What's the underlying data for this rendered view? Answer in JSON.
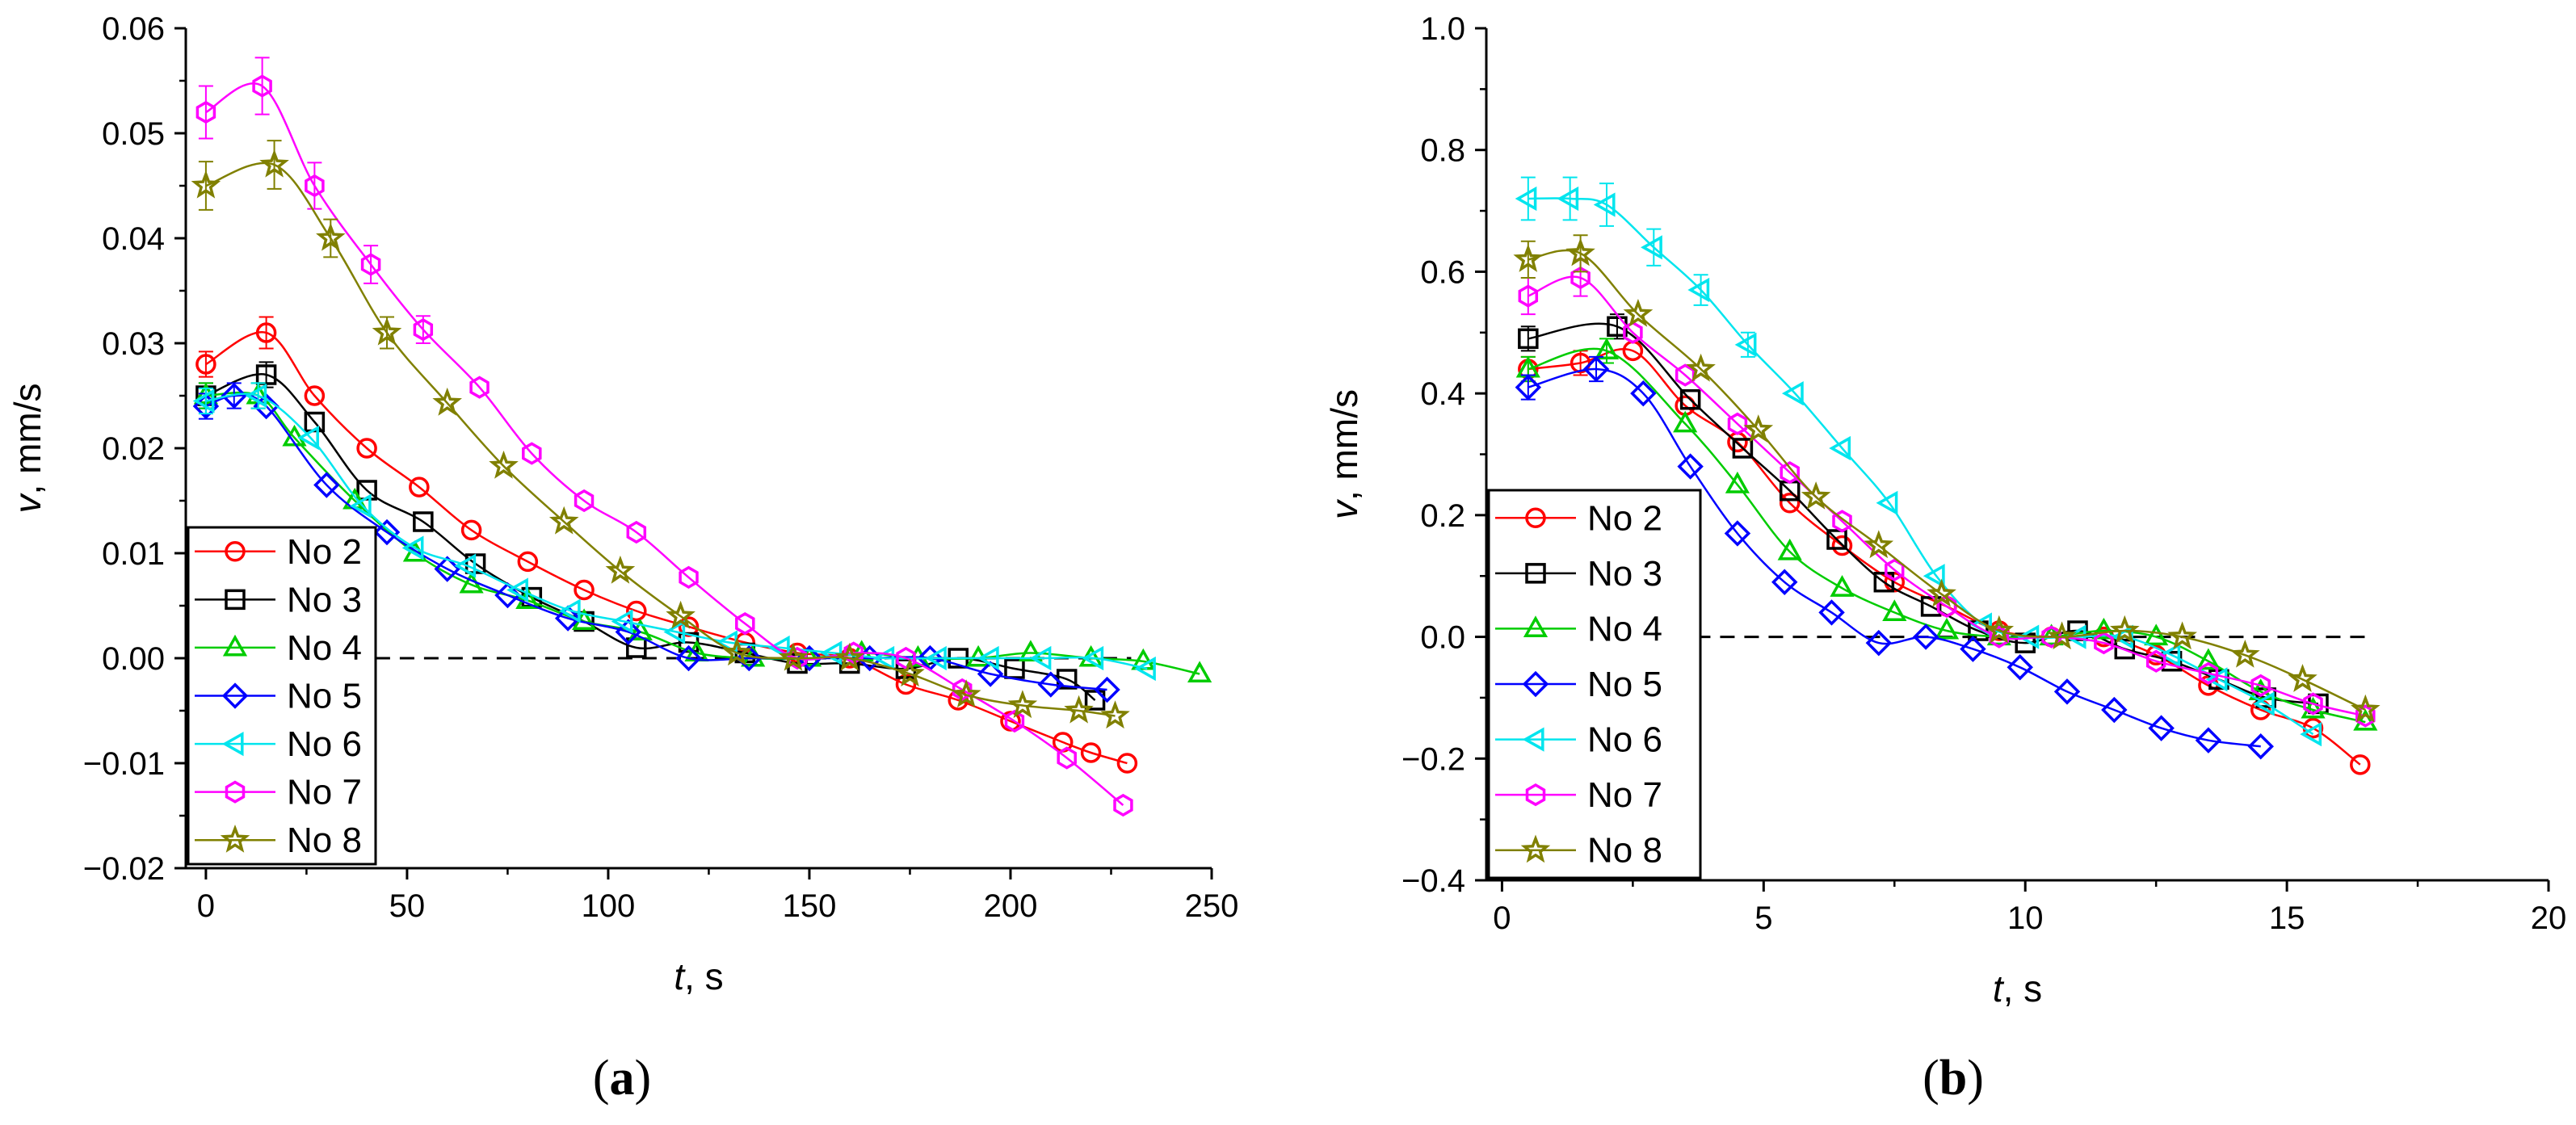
{
  "figure": {
    "panels": [
      {
        "paren_open": "(",
        "letter": "a",
        "paren_close": ")"
      },
      {
        "paren_open": "(",
        "letter": "b",
        "paren_close": ")"
      }
    ]
  },
  "series_style": {
    "No 2": {
      "color": "#ff0000",
      "marker": "circle"
    },
    "No 3": {
      "color": "#000000",
      "marker": "square"
    },
    "No 4": {
      "color": "#00cc00",
      "marker": "triangle-up"
    },
    "No 5": {
      "color": "#0000ff",
      "marker": "diamond"
    },
    "No 6": {
      "color": "#00e5ee",
      "marker": "triangle-left"
    },
    "No 7": {
      "color": "#ff00ff",
      "marker": "hexagon"
    },
    "No 8": {
      "color": "#808000",
      "marker": "star"
    }
  },
  "chart_data": [
    {
      "type": "line",
      "panel": "a",
      "xlabel_var": "t",
      "xlabel_unit": ", s",
      "ylabel_var": "v",
      "ylabel_unit": ", mm/s",
      "xlim": [
        -5,
        250
      ],
      "ylim": [
        -0.02,
        0.06
      ],
      "xticks": [
        0,
        50,
        100,
        150,
        200,
        250
      ],
      "xtick_labels": [
        "0",
        "50",
        "100",
        "150",
        "200",
        "250"
      ],
      "yticks": [
        -0.02,
        -0.01,
        0.0,
        0.01,
        0.02,
        0.03,
        0.04,
        0.05,
        0.06
      ],
      "ytick_labels": [
        "−0.02",
        "−0.01",
        "0.00",
        "0.01",
        "0.02",
        "0.03",
        "0.04",
        "0.05",
        "0.06"
      ],
      "reference_line": {
        "y": 0,
        "x_from": 0,
        "x_to": 230,
        "style": "dashed"
      },
      "legend": {
        "position": "left",
        "entries": [
          "No 2",
          "No 3",
          "No 4",
          "No 5",
          "No 6",
          "No 7",
          "No 8"
        ]
      },
      "series": [
        {
          "name": "No 2",
          "x": [
            0,
            15,
            27,
            40,
            53,
            66,
            80,
            94,
            107,
            120,
            134,
            147,
            160,
            174,
            187,
            200,
            213,
            220,
            229
          ],
          "y": [
            0.028,
            0.031,
            0.025,
            0.02,
            0.0163,
            0.0122,
            0.0092,
            0.0065,
            0.0045,
            0.003,
            0.0015,
            0.0005,
            0.0,
            -0.0025,
            -0.004,
            -0.006,
            -0.008,
            -0.009,
            -0.01
          ],
          "err": [
            0.0012,
            0.0015,
            0.0,
            0.0,
            0.0,
            0.0,
            0.0,
            0.0,
            0.0,
            0.0,
            0.0,
            0.0,
            0.0,
            0.0,
            0.0,
            0.0,
            0.0,
            0.0,
            0.0
          ]
        },
        {
          "name": "No 3",
          "x": [
            0,
            15,
            27,
            40,
            54,
            67,
            81,
            94,
            107,
            120,
            134,
            147,
            160,
            174,
            187,
            201,
            214,
            221
          ],
          "y": [
            0.025,
            0.027,
            0.0225,
            0.016,
            0.013,
            0.009,
            0.0058,
            0.0035,
            0.001,
            0.0015,
            0.0005,
            -0.0005,
            -0.0005,
            -0.001,
            0.0,
            -0.001,
            -0.002,
            -0.004
          ],
          "err": [
            0.0012,
            0.0012,
            0.0,
            0.0,
            0.0,
            0.0,
            0.0,
            0.0,
            0.0,
            0.0,
            0.0,
            0.0,
            0.0,
            0.0,
            0.0,
            0.0,
            0.0,
            0.0
          ]
        },
        {
          "name": "No 4",
          "x": [
            0,
            13,
            22,
            37,
            52,
            66,
            80,
            94,
            108,
            122,
            136,
            150,
            163,
            177,
            192,
            205,
            220,
            233,
            247
          ],
          "y": [
            0.025,
            0.025,
            0.021,
            0.015,
            0.01,
            0.007,
            0.0055,
            0.0035,
            0.0025,
            0.0005,
            0.0,
            0.0,
            0.0005,
            0.0,
            0.0,
            0.0005,
            0.0,
            -0.0003,
            -0.0015
          ],
          "err": [
            0.0012,
            0.0012,
            0.0,
            0.0,
            0.0,
            0.0,
            0.0,
            0.0,
            0.0,
            0.0,
            0.0,
            0.0,
            0.0,
            0.0,
            0.0,
            0.0,
            0.0,
            0.0,
            0.0
          ]
        },
        {
          "name": "No 5",
          "x": [
            0,
            7,
            15,
            30,
            45,
            60,
            75,
            90,
            105,
            120,
            135,
            150,
            165,
            180,
            195,
            210,
            224
          ],
          "y": [
            0.024,
            0.025,
            0.024,
            0.0165,
            0.012,
            0.0085,
            0.006,
            0.0038,
            0.0025,
            0.0,
            0.0,
            0.0,
            0.0,
            0.0,
            -0.0015,
            -0.0025,
            -0.003
          ],
          "err": [
            0.0012,
            0.0012,
            0.0,
            0.0,
            0.0,
            0.0,
            0.0,
            0.0,
            0.0,
            0.0,
            0.0,
            0.0,
            0.0,
            0.0,
            0.0,
            0.0,
            0.0
          ]
        },
        {
          "name": "No 6",
          "x": [
            0,
            13,
            26,
            39,
            52,
            65,
            78,
            91,
            104,
            117,
            130,
            143,
            156,
            169,
            182,
            195,
            208,
            221,
            234
          ],
          "y": [
            0.0245,
            0.025,
            0.021,
            0.0145,
            0.0105,
            0.0088,
            0.0065,
            0.0045,
            0.0035,
            0.0025,
            0.0015,
            0.001,
            0.0005,
            0.0,
            0.0,
            0.0,
            0.0,
            0.0,
            -0.001
          ],
          "err": [
            0.0012,
            0.0012,
            0.0,
            0.0,
            0.0,
            0.0,
            0.0,
            0.0,
            0.0,
            0.0,
            0.0,
            0.0,
            0.0,
            0.0,
            0.0,
            0.0,
            0.0,
            0.0,
            0.0
          ]
        },
        {
          "name": "No 7",
          "x": [
            0,
            14,
            27,
            41,
            54,
            68,
            81,
            94,
            107,
            120,
            134,
            147,
            161,
            174,
            188,
            201,
            214,
            228
          ],
          "y": [
            0.052,
            0.0545,
            0.045,
            0.0375,
            0.0313,
            0.0258,
            0.0195,
            0.015,
            0.012,
            0.0077,
            0.0033,
            0.0,
            0.0005,
            0.0,
            -0.003,
            -0.006,
            -0.0095,
            -0.014
          ],
          "err": [
            0.0025,
            0.0027,
            0.0022,
            0.0018,
            0.0013,
            0.0,
            0.0,
            0.0,
            0.0,
            0.0,
            0.0,
            0.0,
            0.0,
            0.0,
            0.0,
            0.0,
            0.0,
            0.0
          ]
        },
        {
          "name": "No 8",
          "x": [
            0,
            17,
            31,
            45,
            60,
            74,
            89,
            103,
            118,
            132,
            146,
            160,
            175,
            189,
            203,
            217,
            226
          ],
          "y": [
            0.045,
            0.047,
            0.04,
            0.031,
            0.0243,
            0.0183,
            0.013,
            0.0083,
            0.004,
            0.0005,
            0.0,
            0.0,
            -0.0015,
            -0.0035,
            -0.0045,
            -0.005,
            -0.0055
          ],
          "err": [
            0.0023,
            0.0023,
            0.0018,
            0.0015,
            0.0,
            0.0,
            0.0,
            0.0,
            0.0,
            0.0,
            0.0,
            0.0,
            0.0,
            0.0,
            0.0,
            0.0,
            0.0
          ]
        }
      ]
    },
    {
      "type": "line",
      "panel": "b",
      "xlabel_var": "t",
      "xlabel_unit": ", s",
      "ylabel_var": "v",
      "ylabel_unit": ", mm/s",
      "xlim": [
        -0.3,
        20
      ],
      "ylim": [
        -0.4,
        1.0
      ],
      "xticks": [
        0,
        5,
        10,
        15,
        20
      ],
      "xtick_labels": [
        "0",
        "5",
        "10",
        "15",
        "20"
      ],
      "yticks": [
        -0.4,
        -0.2,
        0.0,
        0.2,
        0.4,
        0.6,
        0.8,
        1.0
      ],
      "ytick_labels": [
        "−0.4",
        "−0.2",
        "0.0",
        "0.2",
        "0.4",
        "0.6",
        "0.8",
        "1.0"
      ],
      "reference_line": {
        "y": 0,
        "x_from": 0,
        "x_to": 16.5,
        "style": "dashed"
      },
      "legend": {
        "position": "left",
        "entries": [
          "No 2",
          "No 3",
          "No 4",
          "No 5",
          "No 6",
          "No 7",
          "No 8"
        ]
      },
      "series": [
        {
          "name": "No 2",
          "x": [
            0.5,
            1.5,
            2.5,
            3.5,
            4.5,
            5.5,
            6.5,
            7.5,
            8.5,
            9.5,
            10.5,
            11.5,
            12.5,
            13.5,
            14.5,
            15.5,
            16.4
          ],
          "y": [
            0.44,
            0.45,
            0.47,
            0.38,
            0.32,
            0.22,
            0.15,
            0.09,
            0.05,
            0.01,
            0.0,
            0.0,
            -0.03,
            -0.08,
            -0.12,
            -0.15,
            -0.21
          ],
          "err": [
            0.02,
            0.02,
            0.0,
            0.0,
            0.0,
            0.0,
            0.0,
            0.0,
            0.0,
            0.0,
            0.0,
            0.0,
            0.0,
            0.0,
            0.0,
            0.0,
            0.0
          ]
        },
        {
          "name": "No 3",
          "x": [
            0.5,
            2.2,
            3.6,
            4.6,
            5.5,
            6.4,
            7.3,
            8.2,
            9.1,
            10.0,
            11.0,
            11.9,
            12.8,
            13.7,
            14.6,
            15.6
          ],
          "y": [
            0.49,
            0.51,
            0.39,
            0.31,
            0.24,
            0.16,
            0.09,
            0.05,
            0.01,
            -0.01,
            0.01,
            -0.02,
            -0.04,
            -0.07,
            -0.1,
            -0.11
          ],
          "err": [
            0.02,
            0.02,
            0.0,
            0.0,
            0.0,
            0.0,
            0.0,
            0.0,
            0.0,
            0.0,
            0.0,
            0.0,
            0.0,
            0.0,
            0.0,
            0.0
          ]
        },
        {
          "name": "No 4",
          "x": [
            0.5,
            2.0,
            3.5,
            4.5,
            5.5,
            6.5,
            7.5,
            8.5,
            9.5,
            10.5,
            11.5,
            12.5,
            13.5,
            14.5,
            15.5,
            16.5
          ],
          "y": [
            0.44,
            0.47,
            0.35,
            0.25,
            0.14,
            0.08,
            0.04,
            0.01,
            0.0,
            0.0,
            0.01,
            0.0,
            -0.04,
            -0.09,
            -0.12,
            -0.14
          ],
          "err": [
            0.02,
            0.02,
            0.0,
            0.0,
            0.0,
            0.0,
            0.0,
            0.0,
            0.0,
            0.0,
            0.0,
            0.0,
            0.0,
            0.0,
            0.0,
            0.0
          ]
        },
        {
          "name": "No 5",
          "x": [
            0.5,
            1.8,
            2.7,
            3.6,
            4.5,
            5.4,
            6.3,
            7.2,
            8.1,
            9.0,
            9.9,
            10.8,
            11.7,
            12.6,
            13.5,
            14.5
          ],
          "y": [
            0.41,
            0.44,
            0.4,
            0.28,
            0.17,
            0.09,
            0.04,
            -0.01,
            0.0,
            -0.02,
            -0.05,
            -0.09,
            -0.12,
            -0.15,
            -0.17,
            -0.18
          ],
          "err": [
            0.02,
            0.02,
            0.0,
            0.0,
            0.0,
            0.0,
            0.0,
            0.0,
            0.0,
            0.0,
            0.0,
            0.0,
            0.0,
            0.0,
            0.0,
            0.0
          ]
        },
        {
          "name": "No 6",
          "x": [
            0.5,
            1.3,
            2.0,
            2.9,
            3.8,
            4.7,
            5.6,
            6.5,
            7.4,
            8.3,
            9.2,
            10.1,
            11.0,
            11.9,
            12.8,
            13.7,
            14.6,
            15.5
          ],
          "y": [
            0.72,
            0.72,
            0.71,
            0.64,
            0.57,
            0.48,
            0.4,
            0.31,
            0.22,
            0.1,
            0.02,
            0.0,
            0.0,
            0.0,
            -0.03,
            -0.07,
            -0.11,
            -0.16
          ],
          "err": [
            0.035,
            0.035,
            0.035,
            0.03,
            0.025,
            0.02,
            0.0,
            0.0,
            0.0,
            0.0,
            0.0,
            0.0,
            0.0,
            0.0,
            0.0,
            0.0,
            0.0,
            0.0
          ]
        },
        {
          "name": "No 7",
          "x": [
            0.5,
            1.5,
            2.5,
            3.5,
            4.5,
            5.5,
            6.5,
            7.5,
            8.5,
            9.5,
            10.5,
            11.5,
            12.5,
            13.5,
            14.5,
            15.5,
            16.5
          ],
          "y": [
            0.56,
            0.59,
            0.5,
            0.43,
            0.35,
            0.27,
            0.19,
            0.11,
            0.05,
            0.0,
            0.0,
            -0.01,
            -0.04,
            -0.06,
            -0.08,
            -0.11,
            -0.13
          ],
          "err": [
            0.03,
            0.03,
            0.0,
            0.0,
            0.0,
            0.0,
            0.0,
            0.0,
            0.0,
            0.0,
            0.0,
            0.0,
            0.0,
            0.0,
            0.0,
            0.0,
            0.0
          ]
        },
        {
          "name": "No 8",
          "x": [
            0.5,
            1.5,
            2.6,
            3.8,
            4.9,
            6.0,
            7.2,
            8.4,
            9.5,
            10.7,
            11.9,
            13.0,
            14.2,
            15.3,
            16.5
          ],
          "y": [
            0.62,
            0.63,
            0.53,
            0.44,
            0.34,
            0.23,
            0.15,
            0.07,
            0.01,
            0.0,
            0.01,
            0.0,
            -0.03,
            -0.07,
            -0.12
          ],
          "err": [
            0.03,
            0.03,
            0.0,
            0.0,
            0.0,
            0.0,
            0.0,
            0.0,
            0.0,
            0.0,
            0.0,
            0.0,
            0.0,
            0.0,
            0.0
          ]
        }
      ]
    }
  ]
}
